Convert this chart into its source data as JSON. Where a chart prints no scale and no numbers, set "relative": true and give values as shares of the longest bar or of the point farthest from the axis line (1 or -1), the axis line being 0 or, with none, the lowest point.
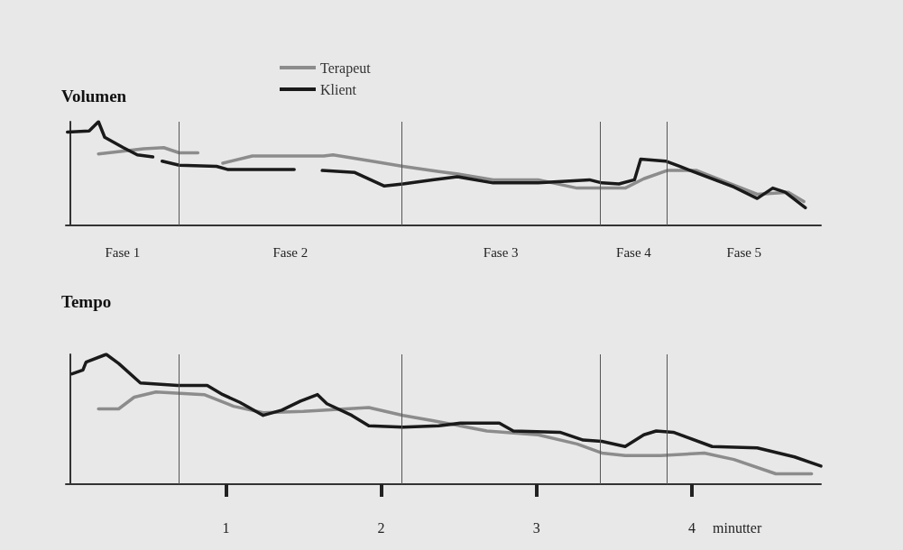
{
  "chart_data": [
    {
      "type": "line",
      "title": "Volumen",
      "relative": true,
      "legend": "top",
      "tick_labels": false,
      "xlim": [
        -0.03,
        4.83
      ],
      "series": [
        {
          "name": "Terapeut",
          "color": "#8c8c8c",
          "x": [
            0.18,
            0.47,
            0.6,
            0.7,
            0.82,
            0.9,
            0.98,
            1.17,
            1.63,
            1.69,
            1.94,
            2.14,
            2.37,
            2.52,
            2.72,
            3.01,
            3.26,
            3.57,
            3.69,
            3.84,
            4.03,
            4.42,
            4.62,
            4.72
          ],
          "values": [
            0.69,
            0.74,
            0.75,
            0.7,
            0.7,
            null,
            0.6,
            0.67,
            0.67,
            0.68,
            0.62,
            0.57,
            0.52,
            0.49,
            0.44,
            0.44,
            0.36,
            0.36,
            0.45,
            0.53,
            0.53,
            0.3,
            0.32,
            0.23
          ]
        },
        {
          "name": "Klient",
          "color": "#1a1a1a",
          "x": [
            -0.02,
            0.12,
            0.18,
            0.22,
            0.34,
            0.43,
            0.53,
            0.55,
            0.59,
            0.7,
            0.94,
            1.01,
            1.44,
            1.52,
            1.62,
            1.83,
            2.02,
            2.14,
            2.33,
            2.49,
            2.72,
            3.01,
            3.34,
            3.42,
            3.53,
            3.63,
            3.67,
            3.83,
            3.92,
            4.27,
            4.42,
            4.52,
            4.6,
            4.73
          ],
          "values": [
            0.9,
            0.91,
            1,
            0.85,
            0.75,
            0.68,
            0.66,
            null,
            0.62,
            0.58,
            0.57,
            0.54,
            0.54,
            null,
            0.53,
            0.51,
            0.38,
            0.4,
            0.44,
            0.47,
            0.41,
            0.41,
            0.44,
            0.41,
            0.4,
            0.44,
            0.64,
            0.62,
            0.57,
            0.37,
            0.26,
            0.36,
            0.32,
            0.17
          ]
        }
      ],
      "annotations": [
        "Fase 1",
        "Fase 2",
        "Fase 3",
        "Fase 4",
        "Fase 5"
      ],
      "ref_lines": [
        {
          "axis": "x",
          "value": 0.7
        },
        {
          "axis": "x",
          "value": 2.13
        },
        {
          "axis": "x",
          "value": 3.41
        },
        {
          "axis": "x",
          "value": 3.84
        }
      ]
    },
    {
      "type": "line",
      "title": "Tempo",
      "relative": true,
      "legend": false,
      "tick_labels": "x",
      "xlabel": "minutter",
      "xlim": [
        -0.03,
        4.83
      ],
      "xticks": [
        1,
        2,
        3,
        4
      ],
      "series": [
        {
          "color": "#8c8c8c",
          "x": [
            0.18,
            0.31,
            0.41,
            0.55,
            0.86,
            1.05,
            1.24,
            1.5,
            1.92,
            2.14,
            2.33,
            2.68,
            3.01,
            3.26,
            3.42,
            3.57,
            3.8,
            4.08,
            4.27,
            4.54,
            4.77
          ],
          "values": [
            0.58,
            0.58,
            0.67,
            0.71,
            0.69,
            0.6,
            0.55,
            0.56,
            0.59,
            0.53,
            0.49,
            0.41,
            0.38,
            0.31,
            0.24,
            0.22,
            0.22,
            0.24,
            0.19,
            0.08,
            0.08
          ]
        },
        {
          "color": "#1a1a1a",
          "x": [
            0.01,
            0.08,
            0.1,
            0.23,
            0.31,
            0.45,
            0.69,
            0.88,
            0.98,
            1.09,
            1.24,
            1.36,
            1.48,
            1.59,
            1.65,
            1.81,
            1.92,
            2.14,
            2.37,
            2.51,
            2.76,
            2.85,
            3.15,
            3.3,
            3.42,
            3.57,
            3.69,
            3.77,
            3.88,
            4.13,
            4.42,
            4.66,
            4.83
          ],
          "values": [
            0.85,
            0.88,
            0.94,
            1,
            0.93,
            0.78,
            0.76,
            0.76,
            0.69,
            0.63,
            0.53,
            0.57,
            0.64,
            0.69,
            0.62,
            0.53,
            0.45,
            0.44,
            0.45,
            0.47,
            0.47,
            0.41,
            0.4,
            0.34,
            0.33,
            0.29,
            0.38,
            0.41,
            0.4,
            0.29,
            0.28,
            0.21,
            0.14
          ]
        }
      ],
      "ref_lines": [
        {
          "axis": "x",
          "value": 0.7
        },
        {
          "axis": "x",
          "value": 2.13
        },
        {
          "axis": "x",
          "value": 3.41
        },
        {
          "axis": "x",
          "value": 3.84
        }
      ]
    }
  ]
}
